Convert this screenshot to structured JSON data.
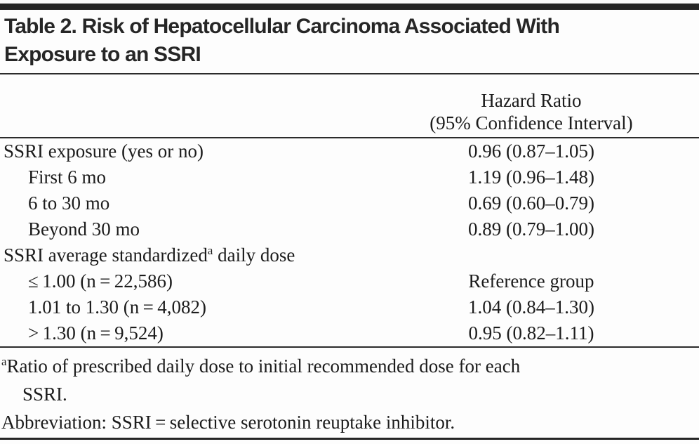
{
  "title": {
    "line1": "Table 2. Risk of Hepatocellular Carcinoma Associated With",
    "line2": "Exposure to an SSRI"
  },
  "table": {
    "header": {
      "line1": "Hazard Ratio",
      "line2": "(95% Confidence Interval)"
    },
    "rows": [
      {
        "label": "SSRI exposure (yes or no)",
        "indent": 0,
        "value": "0.96 (0.87–1.05)"
      },
      {
        "label": "First 6 mo",
        "indent": 1,
        "value": "1.19 (0.96–1.48)"
      },
      {
        "label": "6 to 30 mo",
        "indent": 1,
        "value": "0.69 (0.60–0.79)"
      },
      {
        "label": "Beyond 30 mo",
        "indent": 1,
        "value": "0.89 (0.79–1.00)"
      },
      {
        "label": "SSRI average standardized",
        "label_sup": "a",
        "label_rest": " daily dose",
        "indent": 0,
        "value": ""
      },
      {
        "label": "≤ 1.00 (n = 22,586)",
        "indent": 1,
        "value": "Reference group"
      },
      {
        "label": "1.01 to 1.30 (n = 4,082)",
        "indent": 1,
        "value": "1.04 (0.84–1.30)"
      },
      {
        "label": "> 1.30 (n = 9,524)",
        "indent": 1,
        "value": "0.95 (0.82–1.11)"
      }
    ]
  },
  "footnotes": [
    {
      "marker": "a",
      "lines": [
        "Ratio of prescribed daily dose to initial recommended dose for each",
        "SSRI."
      ]
    },
    {
      "marker": "",
      "lines": [
        "Abbreviation: SSRI = selective serotonin reuptake inhibitor."
      ]
    }
  ],
  "colors": {
    "ink": "#1c1c1c",
    "bar": "#262626",
    "rule": "#2b2b2b",
    "background": "#fdfdfd"
  }
}
